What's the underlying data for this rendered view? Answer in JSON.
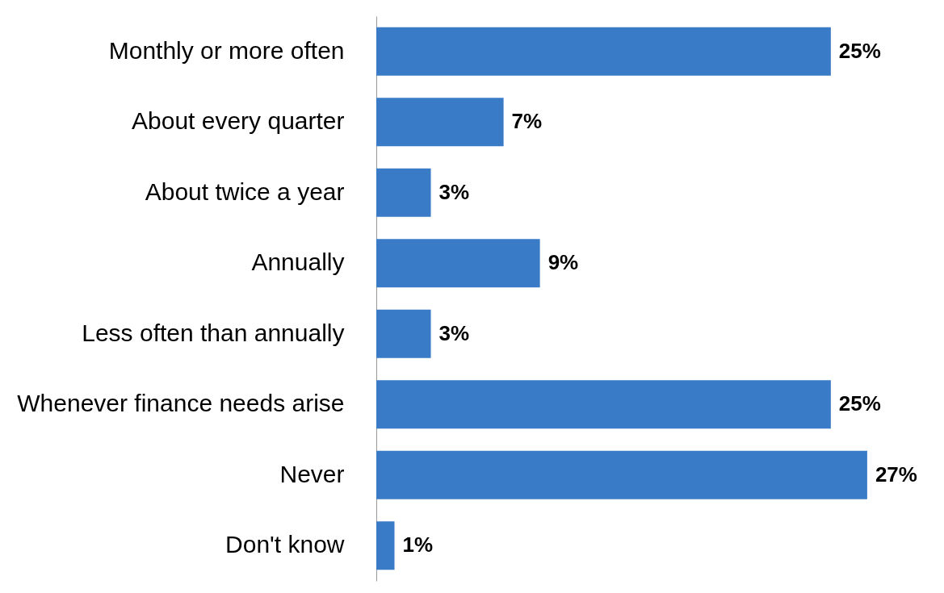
{
  "chart_data": {
    "type": "bar",
    "orientation": "horizontal",
    "categories": [
      "Monthly or more often",
      "About every quarter",
      "About twice a year",
      "Annually",
      "Less often than annually",
      "Whenever finance needs arise",
      "Never",
      "Don't know"
    ],
    "values": [
      25,
      7,
      3,
      9,
      3,
      25,
      27,
      1
    ],
    "value_labels": [
      "25%",
      "7%",
      "3%",
      "9%",
      "3%",
      "25%",
      "27%",
      "1%"
    ],
    "color": "#3a7bc8"
  }
}
